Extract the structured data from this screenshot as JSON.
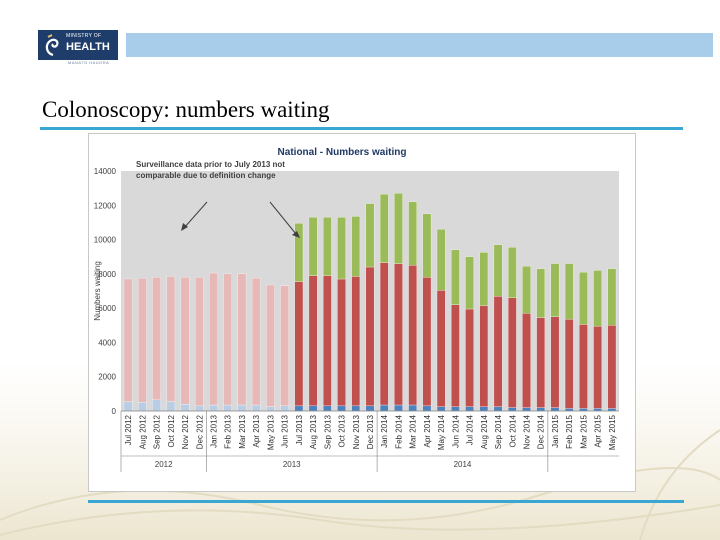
{
  "logo": {
    "ministry_line": "MINISTRY OF",
    "health_line": "HEALTH",
    "maori_line": "MANATŪ HAUORA"
  },
  "slide": {
    "title": "Colonoscopy: numbers waiting"
  },
  "colors": {
    "accent": "#3aa7d2",
    "band": "#a7cdea",
    "old_red": "#e6b9b8",
    "old_blue": "#b9cde5",
    "red": "#c0504d",
    "green": "#9bbb59",
    "blue": "#4f81bd",
    "plot_bg": "#d9d9d9"
  },
  "chart_data": {
    "type": "bar",
    "stacked": true,
    "title": "National  -   Numbers waiting",
    "ylabel": "Numbers waiting",
    "xlabel": "",
    "ylim": [
      0,
      14000
    ],
    "yticks": [
      0,
      2000,
      4000,
      6000,
      8000,
      10000,
      12000,
      14000
    ],
    "grid": false,
    "annotation": "Surveillance data prior to July 2013 not comparable due to definition change",
    "categories": [
      "Jul 2012",
      "Aug 2012",
      "Sep 2012",
      "Oct 2012",
      "Nov 2012",
      "Dec 2012",
      "Jan 2013",
      "Feb 2013",
      "Mar 2013",
      "Apr 2013",
      "May 2013",
      "Jun 2013",
      "Jul 2013",
      "Aug 2013",
      "Sep 2013",
      "Oct 2013",
      "Nov 2013",
      "Dec 2013",
      "Jan 2014",
      "Feb 2014",
      "Mar 2014",
      "Apr 2014",
      "May 2014",
      "Jun 2014",
      "Jul 2014",
      "Aug 2014",
      "Sep 2014",
      "Oct 2014",
      "Nov 2014",
      "Dec 2014",
      "Jan 2015",
      "Feb 2015",
      "Mar 2015",
      "Apr 2015",
      "May 2015"
    ],
    "year_groups": [
      {
        "label": "2012",
        "from": 0,
        "to": 5
      },
      {
        "label": "2013",
        "from": 6,
        "to": 17
      },
      {
        "label": "2014",
        "from": 18,
        "to": 29
      }
    ],
    "comparable_from_index": 12,
    "series": [
      {
        "name": "Blue (bottom)",
        "values": [
          550,
          500,
          650,
          550,
          400,
          300,
          350,
          350,
          350,
          350,
          250,
          300,
          300,
          300,
          300,
          300,
          300,
          300,
          350,
          350,
          350,
          300,
          250,
          250,
          250,
          250,
          250,
          200,
          200,
          200,
          200,
          150,
          150,
          150,
          150
        ]
      },
      {
        "name": "Red (middle)",
        "values": [
          7150,
          7250,
          7150,
          7300,
          7400,
          7500,
          7700,
          7650,
          7650,
          7400,
          7100,
          7000,
          7250,
          7600,
          7600,
          7400,
          7550,
          8100,
          8300,
          8250,
          8150,
          7500,
          6800,
          5950,
          5700,
          5900,
          6450,
          6400,
          5500,
          5250,
          5300,
          5200,
          4900,
          4800,
          4850
        ]
      },
      {
        "name": "Green (top)",
        "values": [
          0,
          0,
          0,
          0,
          0,
          0,
          0,
          0,
          0,
          0,
          0,
          0,
          3400,
          3400,
          3400,
          3600,
          3500,
          3700,
          4000,
          4100,
          3700,
          3700,
          3550,
          3200,
          3050,
          3100,
          3000,
          2950,
          2750,
          2850,
          3100,
          3250,
          3050,
          3250,
          3300
        ]
      }
    ]
  }
}
